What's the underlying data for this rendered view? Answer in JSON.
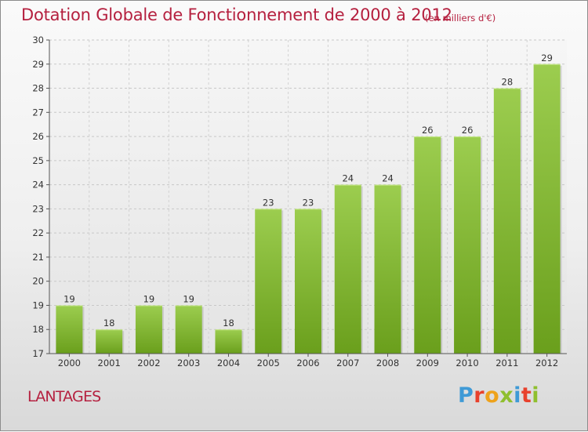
{
  "header": {
    "title": "Dotation Globale de Fonctionnement de 2000 à 2012",
    "unit": "(en milliers d'€)"
  },
  "footer": {
    "commune": "LANTAGES",
    "brand": "Proxiti",
    "brand_colors": [
      "#3f9ad6",
      "#e8412c",
      "#eea21b",
      "#8fbf2e",
      "#3f9ad6",
      "#e8412c",
      "#8fbf2e"
    ]
  },
  "chart_data": {
    "type": "bar",
    "categories": [
      "2000",
      "2001",
      "2002",
      "2003",
      "2004",
      "2005",
      "2006",
      "2007",
      "2008",
      "2009",
      "2010",
      "2011",
      "2012"
    ],
    "values": [
      19,
      18,
      19,
      19,
      18,
      23,
      23,
      24,
      24,
      26,
      26,
      28,
      29
    ],
    "data_labels": [
      "19",
      "18",
      "19",
      "19",
      "18",
      "23",
      "23",
      "24",
      "24",
      "26",
      "26",
      "28",
      "29"
    ],
    "ylim": [
      17,
      30
    ],
    "yticks": [
      "17",
      "18",
      "19",
      "20",
      "21",
      "22",
      "23",
      "24",
      "25",
      "26",
      "27",
      "28",
      "29",
      "30"
    ],
    "grid": true,
    "bar_color_top": "#9ccd4f",
    "bar_color_bottom": "#6a9f1c"
  }
}
